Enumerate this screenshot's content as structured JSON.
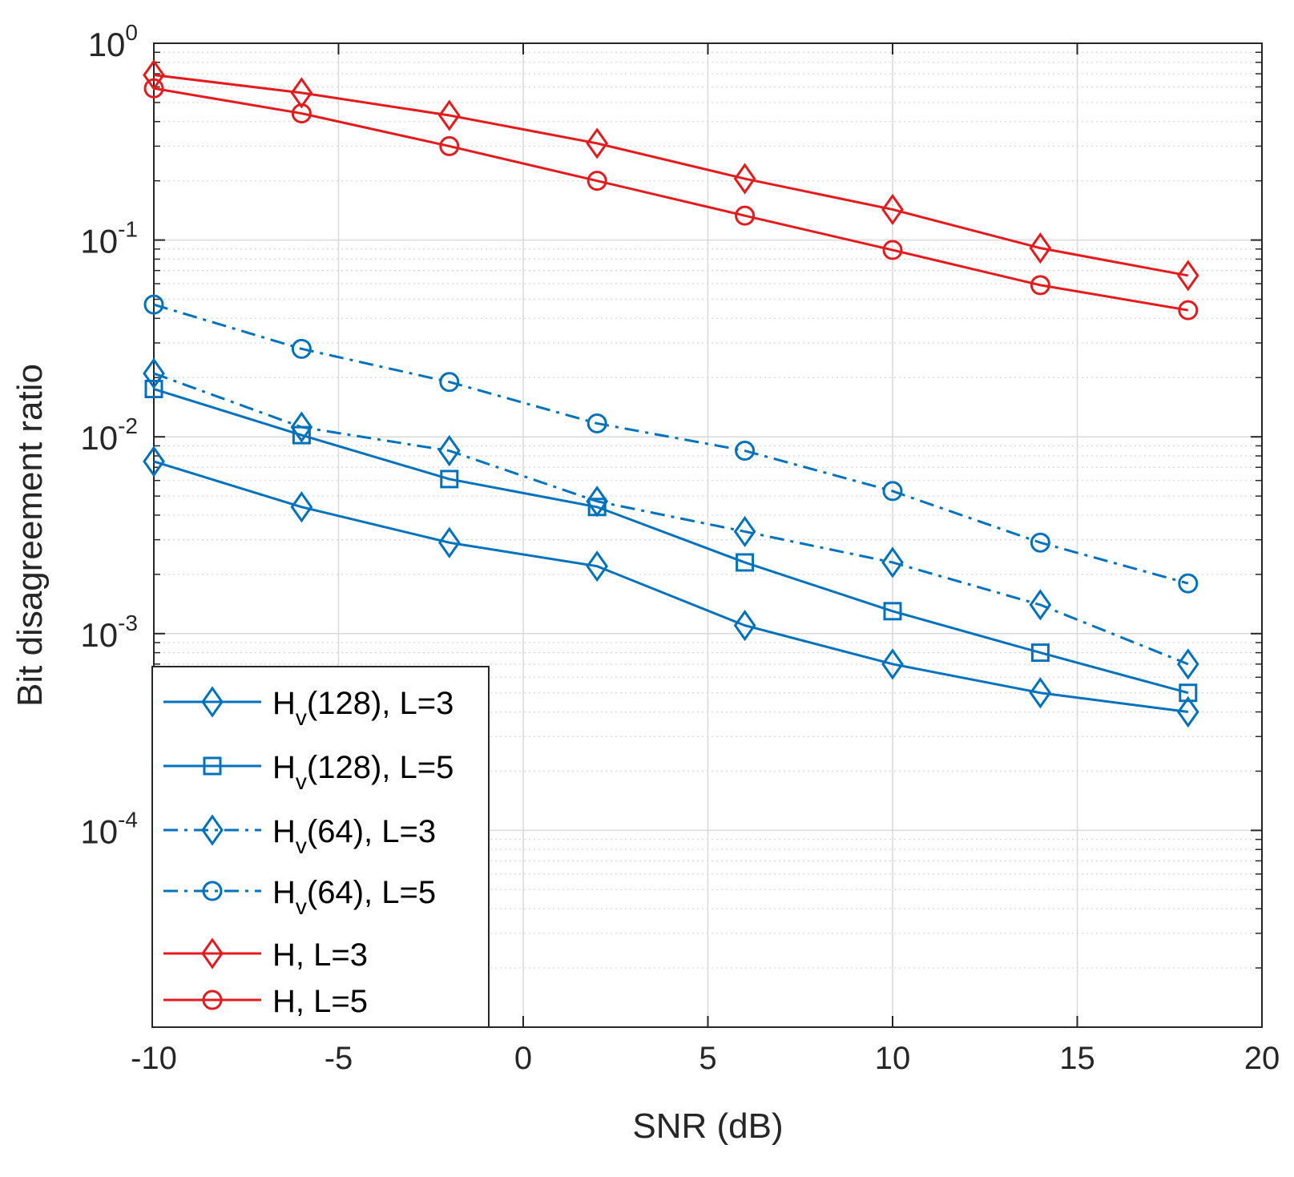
{
  "chart_data": {
    "type": "line",
    "xlabel": "SNR (dB)",
    "ylabel": "Bit disagreement ratio",
    "xlim": [
      -10,
      20
    ],
    "ylim": [
      1e-05,
      1
    ],
    "yscale": "log",
    "grid": true,
    "minor_grid": true,
    "x_ticks": [
      "-10",
      "-5",
      "0",
      "5",
      "10",
      "15",
      "20"
    ],
    "x_tick_values": [
      -10,
      -5,
      0,
      5,
      10,
      15,
      20
    ],
    "y_ticks": [
      {
        "value": 1,
        "base": "10",
        "exp": "0"
      },
      {
        "value": 0.1,
        "base": "10",
        "exp": "-1"
      },
      {
        "value": 0.01,
        "base": "10",
        "exp": "-2"
      },
      {
        "value": 0.001,
        "base": "10",
        "exp": "-3"
      },
      {
        "value": 0.0001,
        "base": "10",
        "exp": "-4"
      }
    ],
    "x": [
      -10,
      -6,
      -2,
      2,
      6,
      10,
      14,
      18
    ],
    "legend_position": "bottom-left",
    "series": [
      {
        "name": "Hv(128), L=3",
        "label_main": "H",
        "label_sub": "v",
        "label_rest": "(128), L=3",
        "color": "#0072BD",
        "dash": "solid",
        "marker": "diamond",
        "values": [
          0.0075,
          0.0044,
          0.0029,
          0.0022,
          0.0011,
          0.0007,
          0.0005,
          0.0004
        ]
      },
      {
        "name": "Hv(128), L=5",
        "label_main": "H",
        "label_sub": "v",
        "label_rest": "(128), L=5",
        "color": "#0072BD",
        "dash": "solid",
        "marker": "square",
        "values": [
          0.0175,
          0.0102,
          0.0061,
          0.0044,
          0.0023,
          0.0013,
          0.0008,
          0.0005
        ]
      },
      {
        "name": "Hv(64), L=3",
        "label_main": "H",
        "label_sub": "v",
        "label_rest": "(64), L=3",
        "color": "#0072BD",
        "dash": "dashdot",
        "marker": "diamond",
        "values": [
          0.021,
          0.0112,
          0.0085,
          0.0047,
          0.0033,
          0.0023,
          0.0014,
          0.0007
        ]
      },
      {
        "name": "Hv(64), L=5",
        "label_main": "H",
        "label_sub": "v",
        "label_rest": "(64), L=5",
        "color": "#0072BD",
        "dash": "dashdot",
        "marker": "circle",
        "values": [
          0.047,
          0.028,
          0.019,
          0.0117,
          0.0085,
          0.0053,
          0.0029,
          0.0018
        ]
      },
      {
        "name": "H, L=3",
        "label_main": "H, L=3",
        "label_sub": "",
        "label_rest": "",
        "color": "#E41A1C",
        "dash": "solid",
        "marker": "diamond",
        "values": [
          0.69,
          0.56,
          0.43,
          0.31,
          0.205,
          0.143,
          0.091,
          0.066
        ]
      },
      {
        "name": "H, L=5",
        "label_main": "H, L=5",
        "label_sub": "",
        "label_rest": "",
        "color": "#E41A1C",
        "dash": "solid",
        "marker": "circle",
        "values": [
          0.59,
          0.44,
          0.3,
          0.2,
          0.133,
          0.089,
          0.059,
          0.044
        ]
      }
    ]
  }
}
